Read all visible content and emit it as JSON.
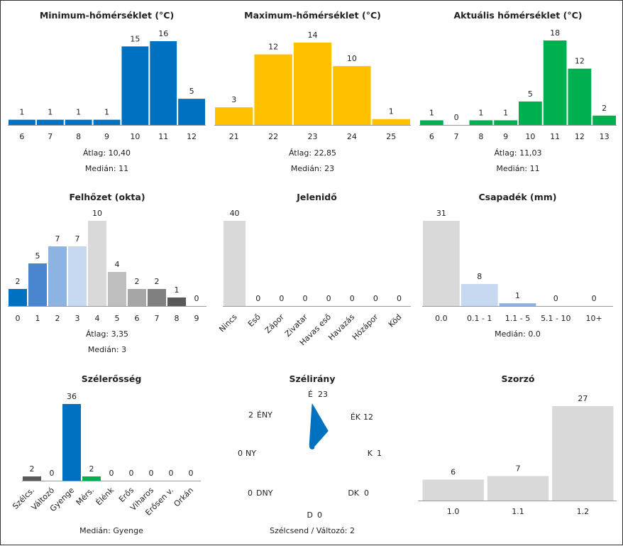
{
  "colors": {
    "blue": "#0070c0",
    "yellow": "#ffc000",
    "green": "#00b050",
    "light_blue_1": "#4a86cf",
    "light_blue_2": "#8db3e2",
    "light_blue_3": "#c6d9f1",
    "gray_light": "#d9d9d9",
    "gray_mid": "#bfbfbf",
    "gray_2": "#a6a6a6",
    "gray_3": "#808080",
    "gray_dark": "#595959"
  },
  "chart_data": [
    {
      "id": "min",
      "type": "bar",
      "title": "Minimum-hőmérséklet (°C)",
      "categories": [
        "6",
        "7",
        "8",
        "9",
        "10",
        "11",
        "12"
      ],
      "values": [
        1,
        1,
        1,
        1,
        15,
        16,
        5
      ],
      "colors": [
        "blue",
        "blue",
        "blue",
        "blue",
        "blue",
        "blue",
        "blue"
      ],
      "stats": [
        "Átlag: 10,40",
        "Medián: 11"
      ],
      "ylim": [
        0,
        16
      ]
    },
    {
      "id": "max",
      "type": "bar",
      "title": "Maximum-hőmérséklet (°C)",
      "categories": [
        "21",
        "22",
        "23",
        "24",
        "25"
      ],
      "values": [
        3,
        12,
        14,
        10,
        1
      ],
      "colors": [
        "yellow",
        "yellow",
        "yellow",
        "yellow",
        "yellow"
      ],
      "stats": [
        "Átlag: 22,85",
        "Medián: 23"
      ],
      "ylim": [
        0,
        14
      ]
    },
    {
      "id": "akt",
      "type": "bar",
      "title": "Aktuális hőmérséklet (°C)",
      "categories": [
        "6",
        "7",
        "8",
        "9",
        "10",
        "11",
        "12",
        "13"
      ],
      "values": [
        1,
        0,
        1,
        1,
        5,
        18,
        12,
        2
      ],
      "colors": [
        "green",
        "green",
        "green",
        "green",
        "green",
        "green",
        "green",
        "green"
      ],
      "stats": [
        "Átlag: 11,03",
        "Medián: 11"
      ],
      "ylim": [
        0,
        18
      ]
    },
    {
      "id": "felho",
      "type": "bar",
      "title": "Felhőzet (okta)",
      "categories": [
        "0",
        "1",
        "2",
        "3",
        "4",
        "5",
        "6",
        "7",
        "8",
        "9"
      ],
      "values": [
        2,
        5,
        7,
        7,
        10,
        4,
        2,
        2,
        1,
        0
      ],
      "colors": [
        "blue",
        "light_blue_1",
        "light_blue_2",
        "light_blue_3",
        "gray_light",
        "gray_mid",
        "gray_2",
        "gray_3",
        "gray_dark",
        "gray_dark"
      ],
      "stats": [
        "Átlag: 3,35",
        "Medián: 3"
      ],
      "ylim": [
        0,
        10
      ]
    },
    {
      "id": "jelen",
      "type": "bar",
      "title": "Jelenidő",
      "categories": [
        "Nincs",
        "Eső",
        "Zápor",
        "Zivatar",
        "Havas eső",
        "Havazás",
        "Hózápor",
        "Köd"
      ],
      "values": [
        40,
        0,
        0,
        0,
        0,
        0,
        0,
        0
      ],
      "colors": [
        "gray_light",
        "gray_light",
        "gray_light",
        "gray_light",
        "gray_light",
        "gray_light",
        "gray_light",
        "gray_light"
      ],
      "stats": [],
      "ylim": [
        0,
        40
      ]
    },
    {
      "id": "csap",
      "type": "bar",
      "title": "Csapadék (mm)",
      "categories": [
        "0.0",
        "0.1 - 1",
        "1.1 - 5",
        "5.1 - 10",
        "10+"
      ],
      "values": [
        31,
        8,
        1,
        0,
        0
      ],
      "colors": [
        "gray_light",
        "light_blue_3",
        "light_blue_2",
        "light_blue_1",
        "blue"
      ],
      "stats": [
        "Medián: 0.0"
      ],
      "ylim": [
        0,
        31
      ]
    },
    {
      "id": "szel",
      "type": "bar",
      "title": "Szélerősség",
      "categories": [
        "Szélcs.",
        "Változó",
        "Gyenge",
        "Mérs.",
        "Élénk",
        "Erős",
        "Viharos",
        "Erősen v.",
        "Orkán"
      ],
      "values": [
        2,
        0,
        36,
        2,
        0,
        0,
        0,
        0,
        0
      ],
      "colors": [
        "gray_dark",
        "gray_light",
        "blue",
        "green",
        "green",
        "yellow",
        "yellow",
        "yellow",
        "yellow"
      ],
      "stats": [
        "Medián: Gyenge"
      ],
      "ylim": [
        0,
        36
      ]
    },
    {
      "id": "irany",
      "type": "radar",
      "title": "Szélirány",
      "directions": [
        "É",
        "ÉK",
        "K",
        "DK",
        "D",
        "DNY",
        "NY",
        "ÉNY"
      ],
      "values": [
        23,
        12,
        1,
        0,
        0,
        0,
        0,
        2
      ],
      "stats": [
        "Szélcsend / Változó: 2"
      ],
      "ylim": [
        0,
        23
      ]
    },
    {
      "id": "szorzo",
      "type": "bar",
      "title": "Szorzó",
      "categories": [
        "1.0",
        "1.1",
        "1.2"
      ],
      "values": [
        6,
        7,
        27
      ],
      "colors": [
        "gray_light",
        "gray_light",
        "gray_light"
      ],
      "stats": [],
      "ylim": [
        0,
        27
      ]
    }
  ]
}
